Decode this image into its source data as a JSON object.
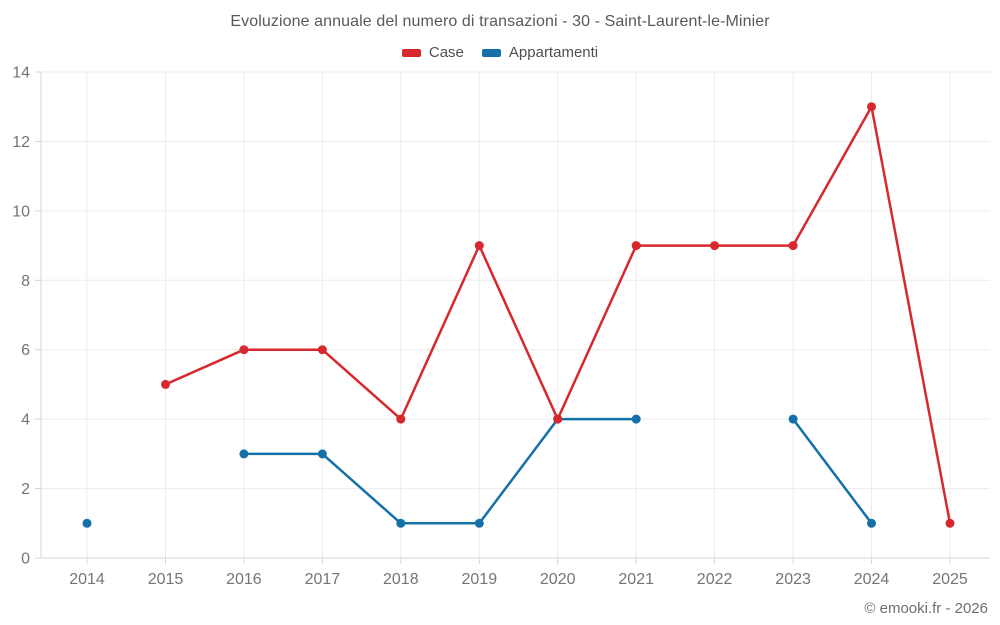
{
  "header": {
    "title": "Evoluzione annuale del numero di transazioni - 30 - Saint-Laurent-le-Minier"
  },
  "legend": {
    "items": [
      {
        "label": "Case",
        "color": "#d7292d"
      },
      {
        "label": "Appartamenti",
        "color": "#1471a8"
      }
    ]
  },
  "footer": {
    "credit": "© emooki.fr - 2026"
  },
  "colors": {
    "grid": "#ececec",
    "axis": "#d4d4d4",
    "tick": "#d4d4d4",
    "tick_label": "#757575",
    "title_text": "#58595b",
    "background": "#ffffff"
  },
  "chart_data": {
    "type": "line",
    "title": "Evoluzione annuale del numero di transazioni - 30 - Saint-Laurent-le-Minier",
    "xlabel": "",
    "ylabel": "",
    "categories": [
      "2014",
      "2015",
      "2016",
      "2017",
      "2018",
      "2019",
      "2020",
      "2021",
      "2022",
      "2023",
      "2024",
      "2025"
    ],
    "series": [
      {
        "name": "Case",
        "color": "#d7292d",
        "values": [
          null,
          5,
          6,
          6,
          4,
          9,
          4,
          9,
          9,
          9,
          13,
          1
        ]
      },
      {
        "name": "Appartamenti",
        "color": "#1471a8",
        "values": [
          1,
          null,
          3,
          3,
          1,
          1,
          4,
          4,
          null,
          4,
          1,
          null
        ]
      }
    ],
    "ylim": [
      0,
      14
    ],
    "yticks": [
      0,
      2,
      4,
      6,
      8,
      10,
      12,
      14
    ],
    "grid": true,
    "legend_position": "top",
    "marker": "circle",
    "footer": "© emooki.fr - 2026"
  }
}
